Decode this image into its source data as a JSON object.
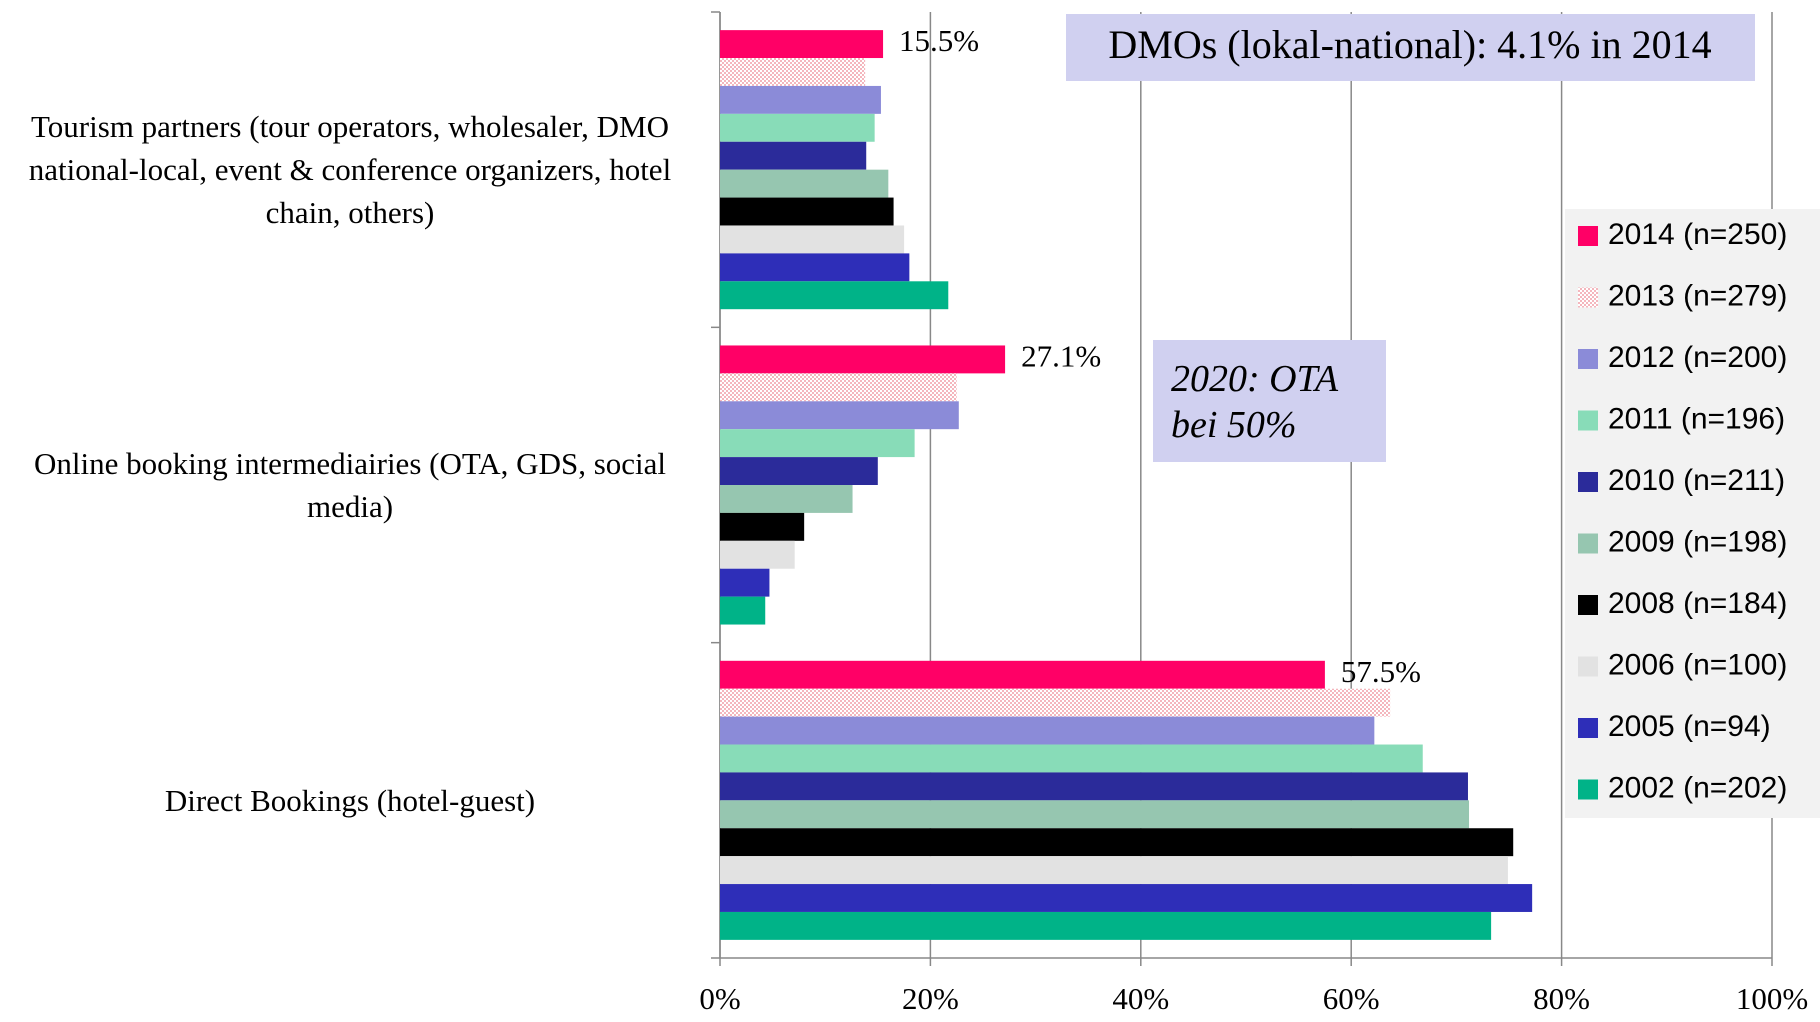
{
  "chart_data": {
    "type": "hbar",
    "categories": [
      "Tourism partners (tour operators, wholesaler, DMO national-local, event & conference organizers, hotel chain, others)",
      "Online booking intermediairies (OTA, GDS, social media)",
      "Direct Bookings (hotel-guest)"
    ],
    "series": [
      {
        "name": "2014 (n=250)",
        "color": "#ff0066",
        "values": [
          15.5,
          27.1,
          57.5
        ],
        "value_labels": [
          "15.5%",
          "27.1%",
          "57.5%"
        ]
      },
      {
        "name": "2013 (n=279)",
        "color": "#f4b6bd",
        "pattern": "dotted",
        "values": [
          13.8,
          22.5,
          63.7
        ]
      },
      {
        "name": "2012 (n=200)",
        "color": "#8b8bd8",
        "values": [
          15.3,
          22.7,
          62.2
        ]
      },
      {
        "name": "2011 (n=196)",
        "color": "#88dcb8",
        "values": [
          14.7,
          18.5,
          66.8
        ]
      },
      {
        "name": "2010 (n=211)",
        "color": "#2b2b9a",
        "values": [
          13.9,
          15.0,
          71.1
        ]
      },
      {
        "name": "2009 (n=198)",
        "color": "#96c6b0",
        "values": [
          16.0,
          12.6,
          71.2
        ]
      },
      {
        "name": "2008 (n=184)",
        "color": "#000000",
        "values": [
          16.5,
          8.0,
          75.4
        ]
      },
      {
        "name": "2006 (n=100)",
        "color": "#e2e2e2",
        "values": [
          17.5,
          7.1,
          74.9
        ]
      },
      {
        "name": "2005 (n=94)",
        "color": "#2e2eb8",
        "values": [
          18.0,
          4.7,
          77.2
        ]
      },
      {
        "name": "2002 (n=202)",
        "color": "#00b388",
        "values": [
          21.7,
          4.3,
          73.3
        ]
      }
    ],
    "xlim": [
      0,
      100
    ],
    "xticks": [
      {
        "value": 0,
        "label": "0%"
      },
      {
        "value": 20,
        "label": "20%"
      },
      {
        "value": 40,
        "label": "40%"
      },
      {
        "value": 60,
        "label": "60%"
      },
      {
        "value": 80,
        "label": "80%"
      },
      {
        "value": 100,
        "label": "100%"
      }
    ],
    "grid": true,
    "legend": "right",
    "annotations": [
      "DMOs (lokal-national): 4.1% in 2014",
      "2020: OTA bei 50%"
    ]
  }
}
